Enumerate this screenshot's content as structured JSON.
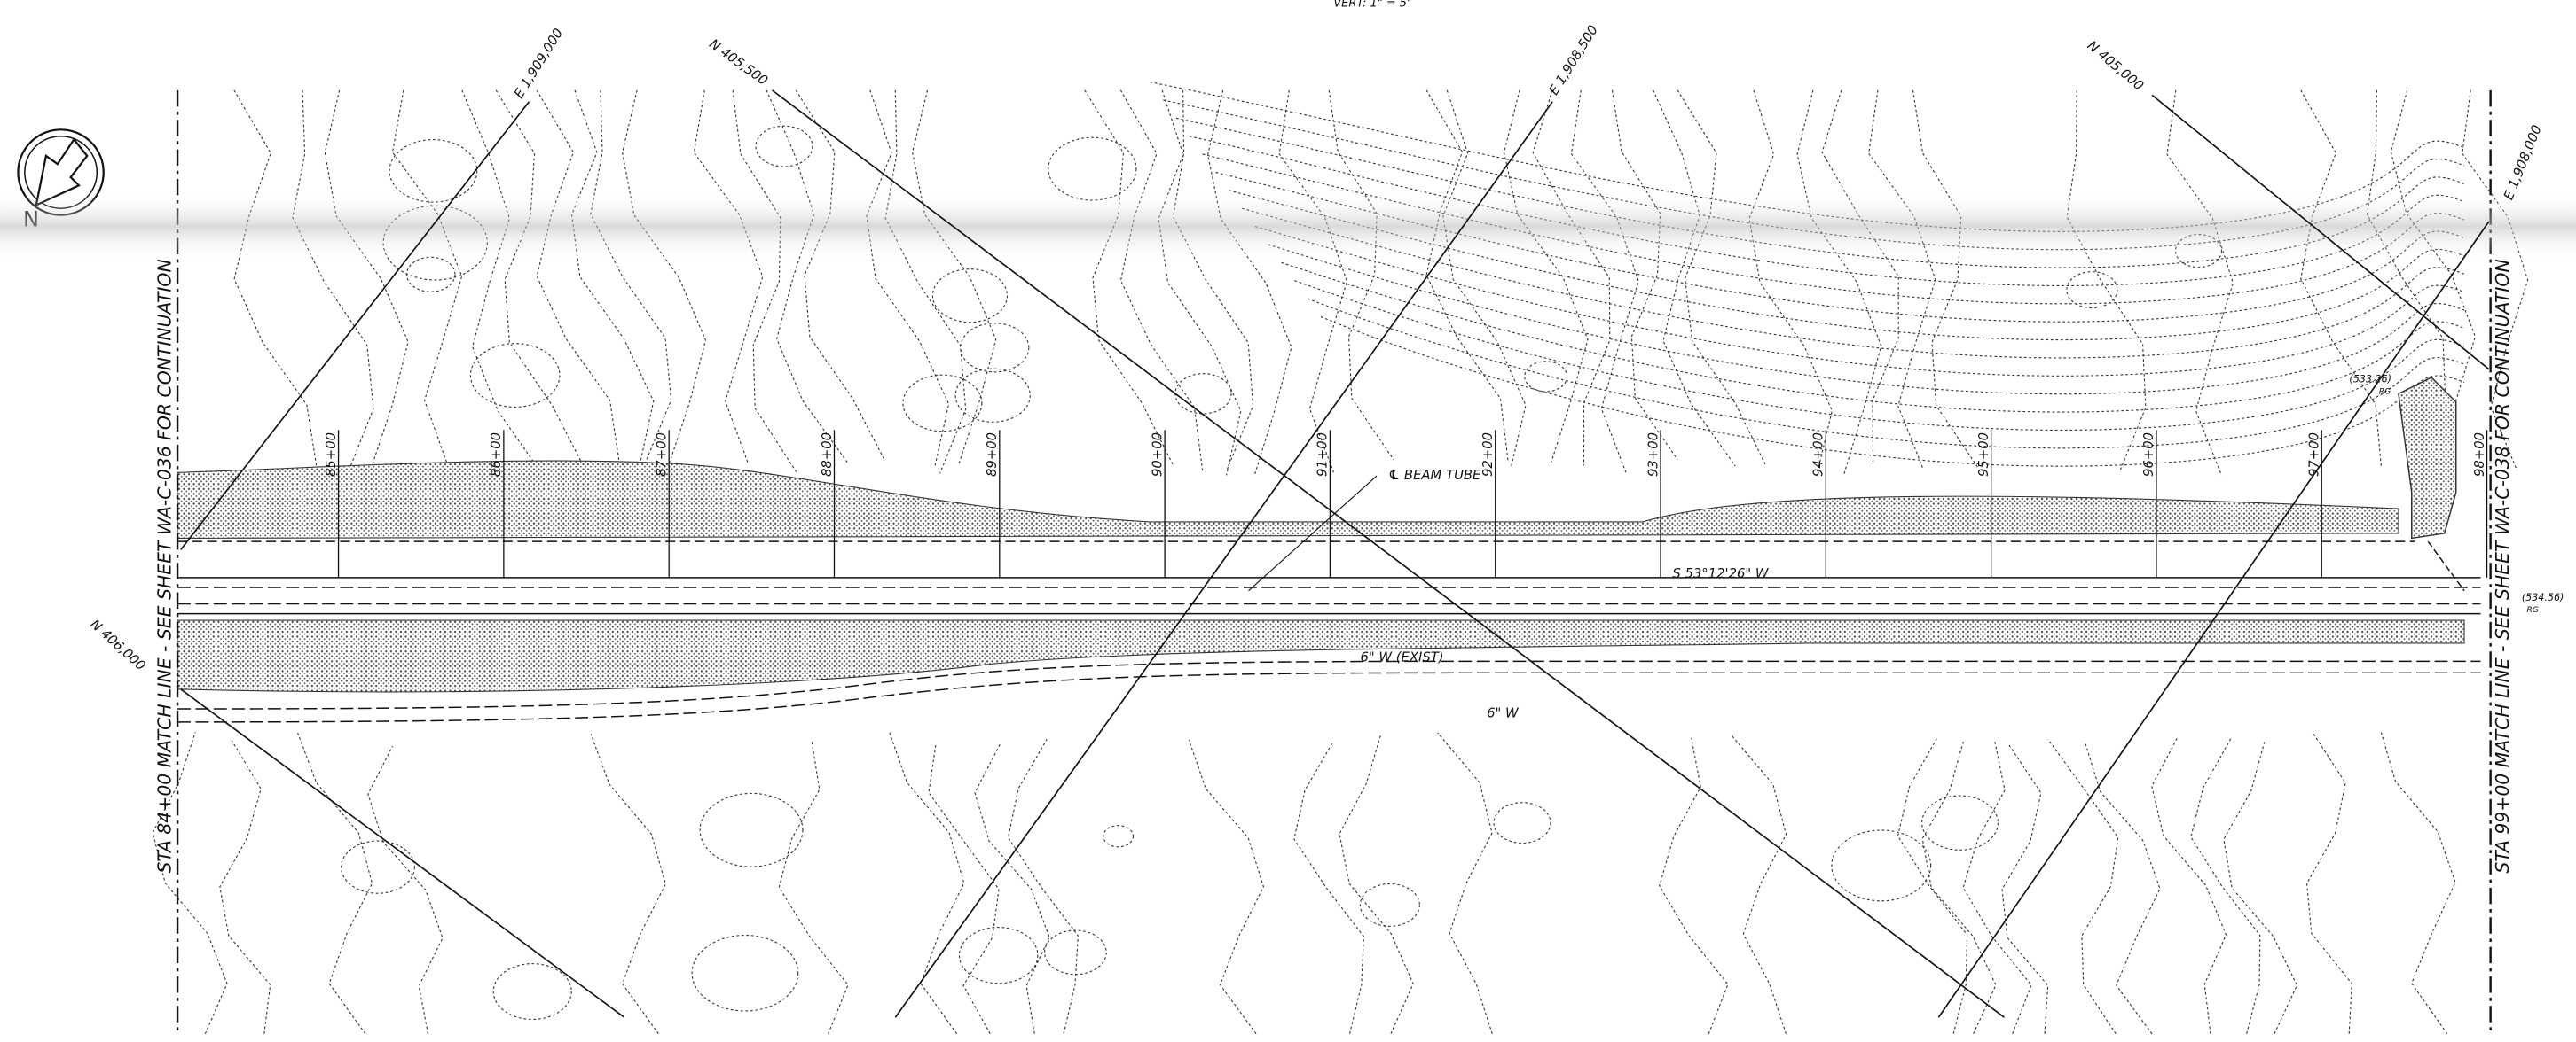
{
  "scale_note": "VERT: 1\" = 5'",
  "north_arrow_label": "N",
  "grid_lines": [
    {
      "label": "E 1,909,000"
    },
    {
      "label": "N 405,500"
    },
    {
      "label": "E 1,908,500"
    },
    {
      "label": "N 405,000"
    },
    {
      "label": "E 1,908,000"
    },
    {
      "label": "N 406,000"
    }
  ],
  "stations": [
    "85+00",
    "86+00",
    "87+00",
    "88+00",
    "89+00",
    "90+00",
    "91+00",
    "92+00",
    "93+00",
    "94+00",
    "95+00",
    "96+00",
    "97+00",
    "98+00"
  ],
  "match_lines": [
    {
      "text": "STA 84+00 MATCH LINE - SEE SHEET WA-C-036 FOR CONTINUATION"
    },
    {
      "text": "STA 99+00 MATCH LINE - SEE SHEET WA-C-038 FOR CONTINUATION"
    }
  ],
  "annotations": {
    "beam_tube": "℄ BEAM TUBE",
    "bearing": "S 53°12'26\" W",
    "water_exist": "6\" W (EXIST)",
    "water": "6\" W"
  },
  "spot_elevations": [
    {
      "value": "(533.26)",
      "note": "RG"
    },
    {
      "value": "(534.56)",
      "note": "RG"
    }
  ]
}
